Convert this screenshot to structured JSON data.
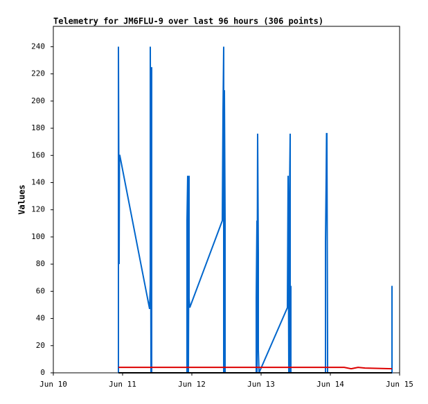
{
  "chart_data": {
    "type": "line",
    "title": "Telemetry for JM6FLU-9 over last 96 hours (306 points)",
    "ylabel": "Values",
    "xlim": [
      0,
      5
    ],
    "xticks": [
      {
        "value": 0,
        "label": "Jun 10"
      },
      {
        "value": 1,
        "label": "Jun 11"
      },
      {
        "value": 2,
        "label": "Jun 12"
      },
      {
        "value": 3,
        "label": "Jun 13"
      },
      {
        "value": 4,
        "label": "Jun 14"
      },
      {
        "value": 5,
        "label": "Jun 15"
      }
    ],
    "ylim": [
      0,
      255
    ],
    "yticks": [
      0,
      20,
      40,
      60,
      80,
      100,
      120,
      140,
      160,
      180,
      200,
      220,
      240
    ],
    "series": [
      {
        "color": "#0066cc",
        "x": [
          0.94,
          0.94,
          0.95,
          0.955,
          0.96,
          1.39,
          1.4,
          1.4,
          1.41,
          1.42,
          1.42,
          1.42,
          1.93,
          1.93,
          1.94,
          1.95,
          1.96,
          1.96,
          1.97,
          2.44,
          2.45,
          2.46,
          2.46,
          2.47,
          2.48,
          2.48,
          2.93,
          2.93,
          2.94,
          2.94,
          2.95,
          2.96,
          2.96,
          2.97,
          3.38,
          3.39,
          3.4,
          3.41,
          3.42,
          3.42,
          3.43,
          3.43,
          3.93,
          3.93,
          3.94,
          3.945,
          3.95,
          3.96,
          3.96,
          4.89,
          4.89,
          4.89
        ],
        "values": [
          0,
          240,
          80,
          160,
          160,
          47,
          65,
          240,
          0,
          225,
          145,
          0,
          0,
          112,
          145,
          0,
          145,
          55,
          48,
          112,
          192,
          240,
          0,
          208,
          112,
          0,
          0,
          55,
          112,
          0,
          176,
          88,
          17,
          0,
          48,
          145,
          0,
          128,
          176,
          0,
          64,
          0,
          0,
          96,
          145,
          176,
          176,
          17,
          0,
          0,
          64,
          0
        ]
      },
      {
        "color": "#dd0000",
        "x": [
          0.94,
          4.2,
          4.3,
          4.4,
          4.5,
          4.89
        ],
        "values": [
          4,
          4,
          3,
          4,
          3.5,
          3
        ]
      },
      {
        "color": "#000000",
        "x": [
          0.94,
          4.89
        ],
        "values": [
          0,
          0
        ]
      }
    ]
  }
}
